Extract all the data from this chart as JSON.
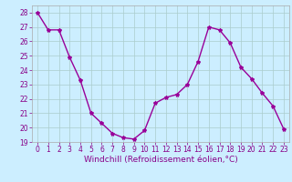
{
  "x": [
    0,
    1,
    2,
    3,
    4,
    5,
    6,
    7,
    8,
    9,
    10,
    11,
    12,
    13,
    14,
    15,
    16,
    17,
    18,
    19,
    20,
    21,
    22,
    23
  ],
  "y": [
    28.0,
    26.8,
    26.8,
    24.9,
    23.3,
    21.0,
    20.3,
    19.6,
    19.3,
    19.2,
    19.8,
    21.7,
    22.1,
    22.3,
    23.0,
    24.6,
    27.0,
    26.8,
    25.9,
    24.2,
    23.4,
    22.4,
    21.5,
    19.9
  ],
  "line_color": "#990099",
  "marker": "*",
  "marker_size": 3,
  "bg_color": "#cceeff",
  "grid_color": "#aacccc",
  "xlabel": "Windchill (Refroidissement éolien,°C)",
  "xlim": [
    -0.5,
    23.5
  ],
  "ylim": [
    19,
    28.5
  ],
  "yticks": [
    19,
    20,
    21,
    22,
    23,
    24,
    25,
    26,
    27,
    28
  ],
  "xticks": [
    0,
    1,
    2,
    3,
    4,
    5,
    6,
    7,
    8,
    9,
    10,
    11,
    12,
    13,
    14,
    15,
    16,
    17,
    18,
    19,
    20,
    21,
    22,
    23
  ],
  "tick_fontsize": 5.5,
  "xlabel_fontsize": 6.5,
  "line_width": 1.0,
  "tick_color": "#880088",
  "label_color": "#880088"
}
